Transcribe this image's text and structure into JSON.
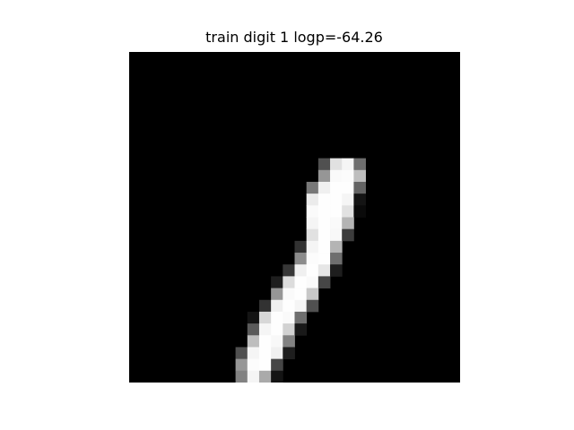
{
  "title": "train digit 1 logp=-64.26",
  "image": {
    "width": 28,
    "height": 28,
    "background": "#000000",
    "pixels": [
      [
        16,
        9,
        80
      ],
      [
        17,
        9,
        225
      ],
      [
        18,
        9,
        245
      ],
      [
        19,
        9,
        110
      ],
      [
        16,
        10,
        150
      ],
      [
        17,
        10,
        250
      ],
      [
        18,
        10,
        252
      ],
      [
        19,
        10,
        190
      ],
      [
        15,
        11,
        120
      ],
      [
        16,
        11,
        240
      ],
      [
        17,
        11,
        254
      ],
      [
        18,
        11,
        254
      ],
      [
        19,
        11,
        100
      ],
      [
        15,
        12,
        235
      ],
      [
        16,
        12,
        254
      ],
      [
        17,
        12,
        254
      ],
      [
        18,
        12,
        245
      ],
      [
        19,
        12,
        20
      ],
      [
        15,
        13,
        250
      ],
      [
        16,
        13,
        254
      ],
      [
        17,
        13,
        254
      ],
      [
        18,
        13,
        225
      ],
      [
        19,
        13,
        10
      ],
      [
        15,
        14,
        245
      ],
      [
        16,
        14,
        254
      ],
      [
        17,
        14,
        250
      ],
      [
        18,
        14,
        180
      ],
      [
        15,
        15,
        225
      ],
      [
        16,
        15,
        254
      ],
      [
        17,
        15,
        248
      ],
      [
        18,
        15,
        60
      ],
      [
        14,
        16,
        50
      ],
      [
        15,
        16,
        245
      ],
      [
        16,
        16,
        254
      ],
      [
        17,
        16,
        180
      ],
      [
        14,
        17,
        140
      ],
      [
        15,
        17,
        252
      ],
      [
        16,
        17,
        254
      ],
      [
        17,
        17,
        110
      ],
      [
        13,
        18,
        55
      ],
      [
        14,
        18,
        240
      ],
      [
        15,
        18,
        254
      ],
      [
        16,
        18,
        230
      ],
      [
        17,
        18,
        30
      ],
      [
        12,
        19,
        30
      ],
      [
        13,
        19,
        220
      ],
      [
        14,
        19,
        254
      ],
      [
        15,
        19,
        250
      ],
      [
        16,
        19,
        70
      ],
      [
        12,
        20,
        150
      ],
      [
        13,
        20,
        250
      ],
      [
        14,
        20,
        254
      ],
      [
        15,
        20,
        200
      ],
      [
        11,
        21,
        50
      ],
      [
        12,
        21,
        240
      ],
      [
        13,
        21,
        254
      ],
      [
        14,
        21,
        245
      ],
      [
        15,
        21,
        80
      ],
      [
        10,
        22,
        20
      ],
      [
        11,
        22,
        215
      ],
      [
        12,
        22,
        254
      ],
      [
        13,
        22,
        250
      ],
      [
        14,
        22,
        110
      ],
      [
        10,
        23,
        90
      ],
      [
        11,
        23,
        245
      ],
      [
        12,
        23,
        254
      ],
      [
        13,
        23,
        210
      ],
      [
        14,
        23,
        25
      ],
      [
        10,
        24,
        190
      ],
      [
        11,
        24,
        254
      ],
      [
        12,
        24,
        248
      ],
      [
        13,
        24,
        130
      ],
      [
        9,
        25,
        80
      ],
      [
        10,
        25,
        245
      ],
      [
        11,
        25,
        254
      ],
      [
        12,
        25,
        240
      ],
      [
        13,
        25,
        30
      ],
      [
        9,
        26,
        150
      ],
      [
        10,
        26,
        252
      ],
      [
        11,
        26,
        254
      ],
      [
        12,
        26,
        70
      ],
      [
        9,
        27,
        130
      ],
      [
        10,
        27,
        245
      ],
      [
        11,
        27,
        170
      ],
      [
        12,
        27,
        20
      ]
    ]
  }
}
